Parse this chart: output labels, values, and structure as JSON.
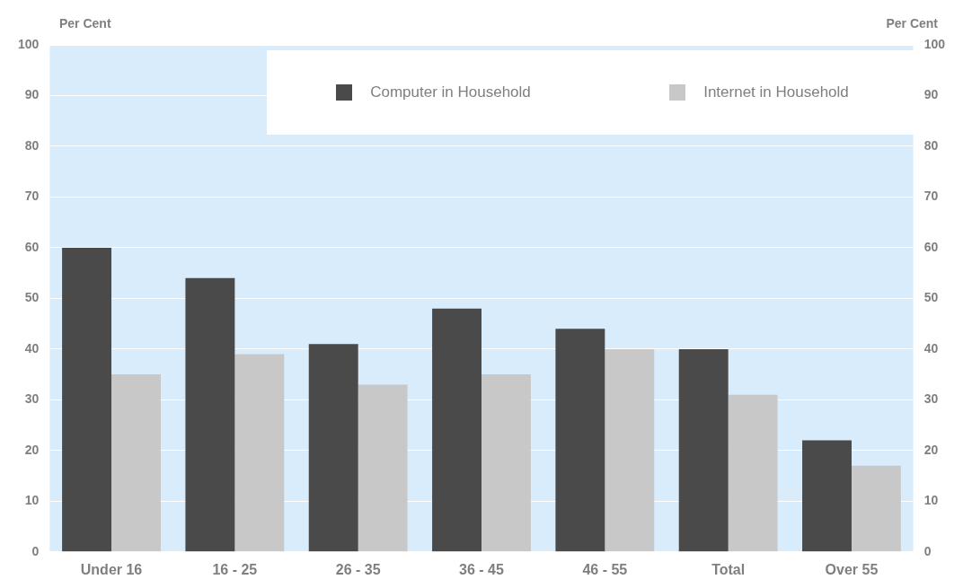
{
  "chart_data": {
    "type": "bar",
    "ylabel": "Per Cent",
    "y2label": "Per Cent",
    "categories": [
      "Under 16",
      "16 - 25",
      "26 - 35",
      "36 - 45",
      "46 - 55",
      "Total",
      "Over 55"
    ],
    "series": [
      {
        "name": "Computer in Household",
        "color": "#4a4a4a",
        "values": [
          60,
          54,
          41,
          48,
          44,
          40,
          22
        ]
      },
      {
        "name": "Internet in Household",
        "color": "#c8c8c8",
        "values": [
          35,
          39,
          33,
          35,
          40,
          31,
          17
        ]
      }
    ],
    "ylim": [
      0,
      100
    ],
    "yticks": [
      0,
      10,
      20,
      30,
      40,
      50,
      60,
      70,
      80,
      90,
      100
    ],
    "y2lim": [
      0,
      100
    ],
    "y2ticks": [
      0,
      10,
      20,
      30,
      40,
      50,
      60,
      70,
      80,
      90,
      100
    ],
    "grid": "y",
    "legend": "top right"
  }
}
